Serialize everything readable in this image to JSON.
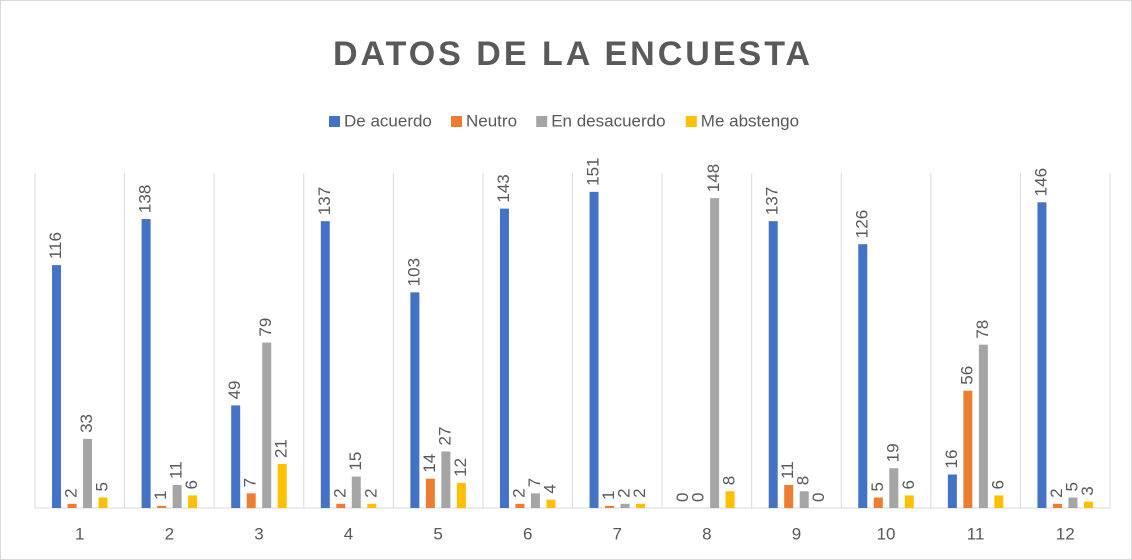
{
  "chart_data": {
    "type": "bar",
    "title": "DATOS DE LA ENCUESTA",
    "categories": [
      "1",
      "2",
      "3",
      "4",
      "5",
      "6",
      "7",
      "8",
      "9",
      "10",
      "11",
      "12"
    ],
    "series": [
      {
        "name": "De acuerdo",
        "color": "#4472c4",
        "values": [
          116,
          138,
          49,
          137,
          103,
          143,
          151,
          0,
          137,
          126,
          16,
          146
        ]
      },
      {
        "name": "Neutro",
        "color": "#ed7d31",
        "values": [
          2,
          1,
          7,
          2,
          14,
          2,
          1,
          0,
          11,
          5,
          56,
          2
        ]
      },
      {
        "name": "En desacuerdo",
        "color": "#a5a5a5",
        "values": [
          33,
          11,
          79,
          15,
          27,
          7,
          2,
          148,
          8,
          19,
          78,
          5
        ]
      },
      {
        "name": "Me abstengo",
        "color": "#ffc000",
        "values": [
          5,
          6,
          21,
          2,
          12,
          4,
          2,
          8,
          0,
          6,
          6,
          3
        ]
      }
    ],
    "ylim": [
      0,
      160
    ],
    "legend": "top"
  }
}
